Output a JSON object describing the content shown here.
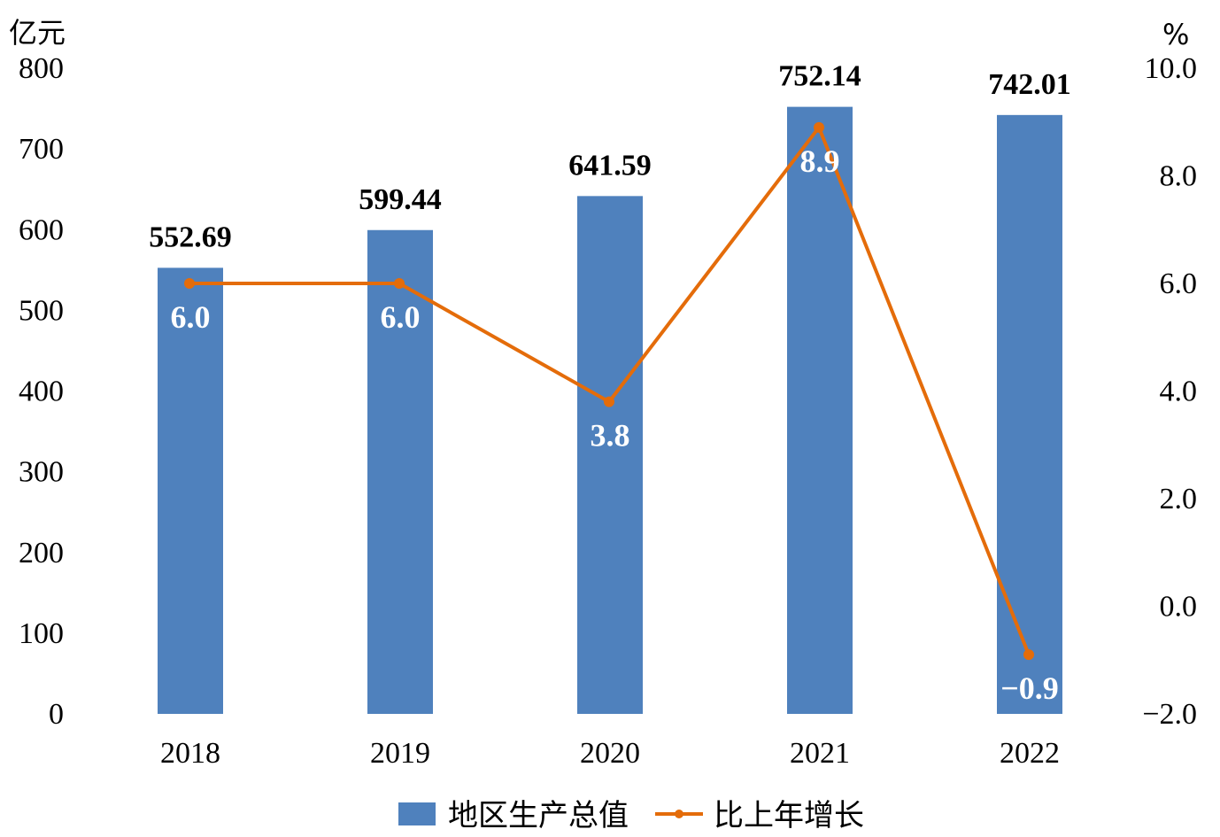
{
  "chart_data": {
    "type": "bar",
    "categories": [
      "2018",
      "2019",
      "2020",
      "2021",
      "2022"
    ],
    "series": [
      {
        "name": "地区生产总值",
        "type": "bar",
        "axis": "left",
        "values": [
          552.69,
          599.44,
          641.59,
          752.14,
          742.01
        ],
        "labels": [
          "552.69",
          "599.44",
          "641.59",
          "752.14",
          "742.01"
        ],
        "color": "#4f81bd"
      },
      {
        "name": "比上年增长",
        "type": "line",
        "axis": "right",
        "values": [
          6.0,
          6.0,
          3.8,
          8.9,
          -0.9
        ],
        "labels": [
          "6.0",
          "6.0",
          "3.8",
          "8.9",
          "−0.9"
        ],
        "color": "#e46c0a"
      }
    ],
    "y_left": {
      "unit": "亿元",
      "ylim": [
        0,
        800
      ],
      "ticks": [
        0,
        100,
        200,
        300,
        400,
        500,
        600,
        700,
        800
      ],
      "tick_labels": [
        "0",
        "100",
        "200",
        "300",
        "400",
        "500",
        "600",
        "700",
        "800"
      ]
    },
    "y_right": {
      "unit": "%",
      "ylim": [
        -2.0,
        10.0
      ],
      "ticks": [
        -2,
        0,
        2,
        4,
        6,
        8,
        10
      ],
      "tick_labels": [
        "−2.0",
        "0.0",
        "2.0",
        "4.0",
        "6.0",
        "8.0",
        "10.0"
      ]
    },
    "grid": false,
    "legend": "bottom"
  }
}
